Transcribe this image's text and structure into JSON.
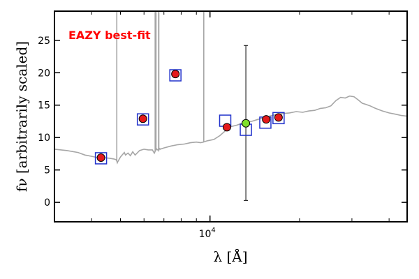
{
  "chart_data": {
    "type": "scatter",
    "annotation": "EAZY best-fit",
    "xlabel": "λ [Å]",
    "ylabel": "fν [arbitrarily scaled]",
    "xscale": "log",
    "xlim": [
      3000,
      46000
    ],
    "ylim": [
      -3,
      29.5
    ],
    "grid": false,
    "yticks": [
      0,
      5,
      10,
      15,
      20,
      25
    ],
    "ytick_labels": [
      "0",
      "5",
      "10",
      "15",
      "20",
      "25"
    ],
    "xticks": [
      10000
    ],
    "xtick_labels": [
      "10^4"
    ],
    "colors": {
      "observed": "#e41a1c",
      "model_photometry": "#2233cc",
      "highlighted": "#7fe02a",
      "sed": "#a6a6a6",
      "annotation": "#ff0000"
    },
    "series": [
      {
        "name": "",
        "marker": "circle",
        "points": [
          {
            "x": 4300,
            "y": 6.9
          },
          {
            "x": 5950,
            "y": 12.9
          },
          {
            "x": 7650,
            "y": 19.8
          },
          {
            "x": 11400,
            "y": 11.6
          },
          {
            "x": 15450,
            "y": 12.8
          },
          {
            "x": 17000,
            "y": 13.1
          }
        ]
      },
      {
        "name": "",
        "marker": "circle",
        "points": [
          {
            "x": 13200,
            "y": 12.2,
            "yerr_low": 0.3,
            "yerr_high": 24.2
          }
        ]
      },
      {
        "name": "",
        "marker": "square",
        "points": [
          {
            "x": 4300,
            "y": 6.8
          },
          {
            "x": 5950,
            "y": 12.8
          },
          {
            "x": 7650,
            "y": 19.6
          },
          {
            "x": 11250,
            "y": 12.6
          },
          {
            "x": 13200,
            "y": 11.2
          },
          {
            "x": 15350,
            "y": 12.3
          },
          {
            "x": 17000,
            "y": 13.0
          }
        ]
      },
      {
        "name": "",
        "type": "line",
        "x": [
          3000,
          3300,
          3600,
          3800,
          4000,
          4200,
          4400,
          4600,
          4750,
          4830,
          4860,
          4880,
          4900,
          5000,
          5150,
          5200,
          5300,
          5400,
          5500,
          5600,
          5800,
          6000,
          6200,
          6400,
          6500,
          6560,
          6600,
          6650,
          6700,
          6720,
          6750,
          6780,
          6800,
          7000,
          7400,
          7800,
          8200,
          8600,
          9000,
          9300,
          9500,
          9800,
          10300,
          10800,
          11300,
          11800,
          12300,
          12800,
          13300,
          13800,
          14500,
          15500,
          16500,
          17500,
          18500,
          19500,
          20500,
          21500,
          22500,
          23500,
          24500,
          25500,
          26500,
          27500,
          28500,
          29500,
          30500,
          31500,
          32500,
          33500,
          34500,
          36000,
          38000,
          40000,
          42000,
          44000,
          46000
        ],
        "y": [
          8.2,
          8.0,
          7.7,
          7.3,
          7.1,
          6.9,
          6.9,
          6.8,
          6.7,
          6.6,
          6.4,
          6.1,
          6.3,
          7.0,
          7.7,
          7.3,
          7.6,
          7.2,
          7.8,
          7.3,
          8.0,
          8.2,
          8.1,
          8.1,
          7.6,
          8.0,
          8.3,
          8.1,
          8.2,
          8.0,
          8.2,
          8.3,
          8.2,
          8.4,
          8.7,
          8.9,
          9.0,
          9.2,
          9.3,
          9.2,
          9.3,
          9.5,
          9.7,
          10.3,
          11.1,
          11.7,
          11.9,
          12.2,
          12.4,
          12.5,
          12.8,
          13.2,
          13.5,
          13.7,
          13.8,
          14.0,
          13.9,
          14.1,
          14.2,
          14.5,
          14.6,
          14.9,
          15.7,
          16.2,
          16.1,
          16.4,
          16.3,
          15.8,
          15.3,
          15.1,
          14.9,
          14.5,
          14.1,
          13.8,
          13.6,
          13.4,
          13.3
        ],
        "emission_lines": [
          {
            "x": 4860,
            "peak": 29.5
          },
          {
            "x": 6540,
            "peak": 29.5
          },
          {
            "x": 6563,
            "peak": 29.5
          },
          {
            "x": 6584,
            "peak": 29.5
          },
          {
            "x": 6716,
            "peak": 29.5
          },
          {
            "x": 6731,
            "peak": 29.5
          },
          {
            "x": 9530,
            "peak": 29.5
          }
        ]
      }
    ]
  }
}
